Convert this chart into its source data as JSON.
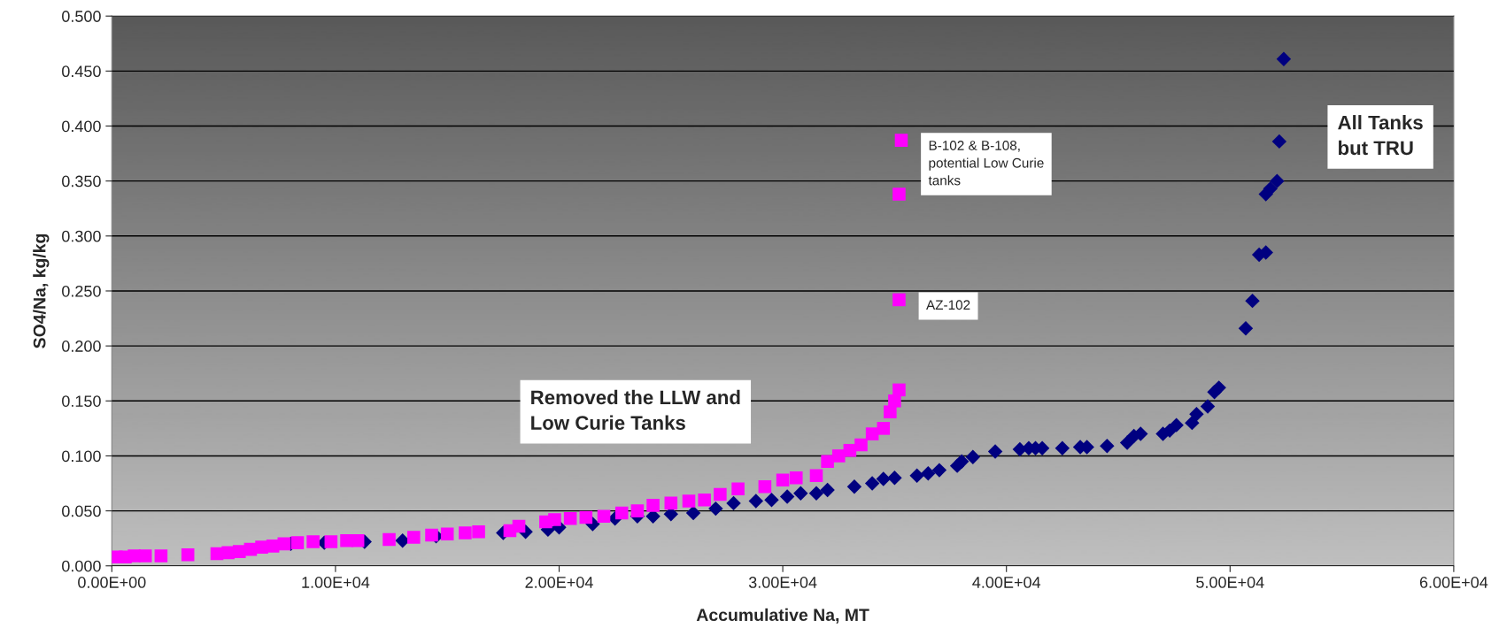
{
  "chart_data": {
    "type": "scatter",
    "xlabel": "Accumulative Na, MT",
    "ylabel": "SO4/Na, kg/kg",
    "xlim": [
      0,
      60000
    ],
    "ylim": [
      0,
      0.5
    ],
    "xticks": [
      {
        "value": 0,
        "label": "0.00E+00"
      },
      {
        "value": 10000,
        "label": "1.00E+04"
      },
      {
        "value": 20000,
        "label": "2.00E+04"
      },
      {
        "value": 30000,
        "label": "3.00E+04"
      },
      {
        "value": 40000,
        "label": "4.00E+04"
      },
      {
        "value": 50000,
        "label": "5.00E+04"
      },
      {
        "value": 60000,
        "label": "6.00E+04"
      }
    ],
    "yticks": [
      {
        "value": 0,
        "label": "0.000"
      },
      {
        "value": 0.05,
        "label": "0.050"
      },
      {
        "value": 0.1,
        "label": "0.100"
      },
      {
        "value": 0.15,
        "label": "0.150"
      },
      {
        "value": 0.2,
        "label": "0.200"
      },
      {
        "value": 0.25,
        "label": "0.250"
      },
      {
        "value": 0.3,
        "label": "0.300"
      },
      {
        "value": 0.35,
        "label": "0.350"
      },
      {
        "value": 0.4,
        "label": "0.400"
      },
      {
        "value": 0.45,
        "label": "0.450"
      },
      {
        "value": 0.5,
        "label": "0.500"
      }
    ],
    "grid": "y",
    "legend": false,
    "series": [
      {
        "name": "All Tanks\nbut TRU",
        "color": "#000080",
        "marker": "diamond",
        "x": [
          8000,
          9500,
          11300,
          13000,
          14500,
          17500,
          18500,
          19500,
          20000,
          21500,
          22500,
          23500,
          24200,
          25000,
          26000,
          27000,
          27800,
          28800,
          29500,
          30200,
          30800,
          31500,
          32000,
          33200,
          34000,
          34500,
          35000,
          36000,
          36500,
          37000,
          37800,
          38000,
          38500,
          39500,
          40600,
          41000,
          41300,
          41600,
          42500,
          43300,
          43600,
          44500,
          45400,
          45700,
          46000,
          47000,
          47300,
          47600,
          48300,
          48500,
          49000,
          49300,
          49500,
          50700,
          51000,
          51300,
          51600,
          51600,
          51800,
          52100,
          52200,
          52400
        ],
        "values": [
          0.02,
          0.021,
          0.022,
          0.023,
          0.027,
          0.03,
          0.031,
          0.033,
          0.035,
          0.038,
          0.043,
          0.045,
          0.045,
          0.047,
          0.048,
          0.052,
          0.057,
          0.059,
          0.06,
          0.063,
          0.066,
          0.066,
          0.069,
          0.072,
          0.075,
          0.079,
          0.08,
          0.082,
          0.084,
          0.087,
          0.091,
          0.095,
          0.099,
          0.104,
          0.106,
          0.107,
          0.107,
          0.107,
          0.107,
          0.108,
          0.108,
          0.109,
          0.112,
          0.118,
          0.12,
          0.12,
          0.123,
          0.128,
          0.13,
          0.138,
          0.145,
          0.158,
          0.162,
          0.216,
          0.241,
          0.283,
          0.285,
          0.338,
          0.343,
          0.35,
          0.386,
          0.461
        ]
      },
      {
        "name": "Removed the LLW and\nLow Curie Tanks",
        "color": "#ff00ff",
        "marker": "square",
        "x": [
          200,
          600,
          1000,
          1500,
          2200,
          3400,
          4700,
          5200,
          5700,
          6200,
          6700,
          7200,
          7700,
          8300,
          9000,
          9800,
          10500,
          11000,
          12400,
          13500,
          14300,
          15000,
          15800,
          16400,
          17800,
          18200,
          19400,
          19800,
          20500,
          21200,
          22000,
          22800,
          23500,
          24200,
          25000,
          25800,
          26500,
          27200,
          28000,
          29200,
          30000,
          30600,
          31500,
          32000,
          32500,
          33000,
          33500,
          34000,
          34500,
          34800,
          35000,
          35200,
          35200,
          35200,
          35300
        ],
        "values": [
          0.008,
          0.008,
          0.009,
          0.009,
          0.009,
          0.01,
          0.011,
          0.012,
          0.013,
          0.015,
          0.017,
          0.018,
          0.02,
          0.021,
          0.022,
          0.022,
          0.023,
          0.023,
          0.024,
          0.026,
          0.028,
          0.029,
          0.03,
          0.031,
          0.032,
          0.036,
          0.04,
          0.042,
          0.043,
          0.044,
          0.045,
          0.048,
          0.05,
          0.055,
          0.057,
          0.059,
          0.06,
          0.065,
          0.07,
          0.072,
          0.078,
          0.08,
          0.082,
          0.095,
          0.1,
          0.105,
          0.11,
          0.12,
          0.125,
          0.14,
          0.15,
          0.16,
          0.242,
          0.338,
          0.387
        ]
      }
    ],
    "annotations": [
      {
        "text": "B-102 & B-108,\npotential Low Curie\ntanks",
        "x": 35300,
        "y": 0.387
      },
      {
        "text": "AZ-102",
        "x": 35200,
        "y": 0.242
      }
    ]
  }
}
